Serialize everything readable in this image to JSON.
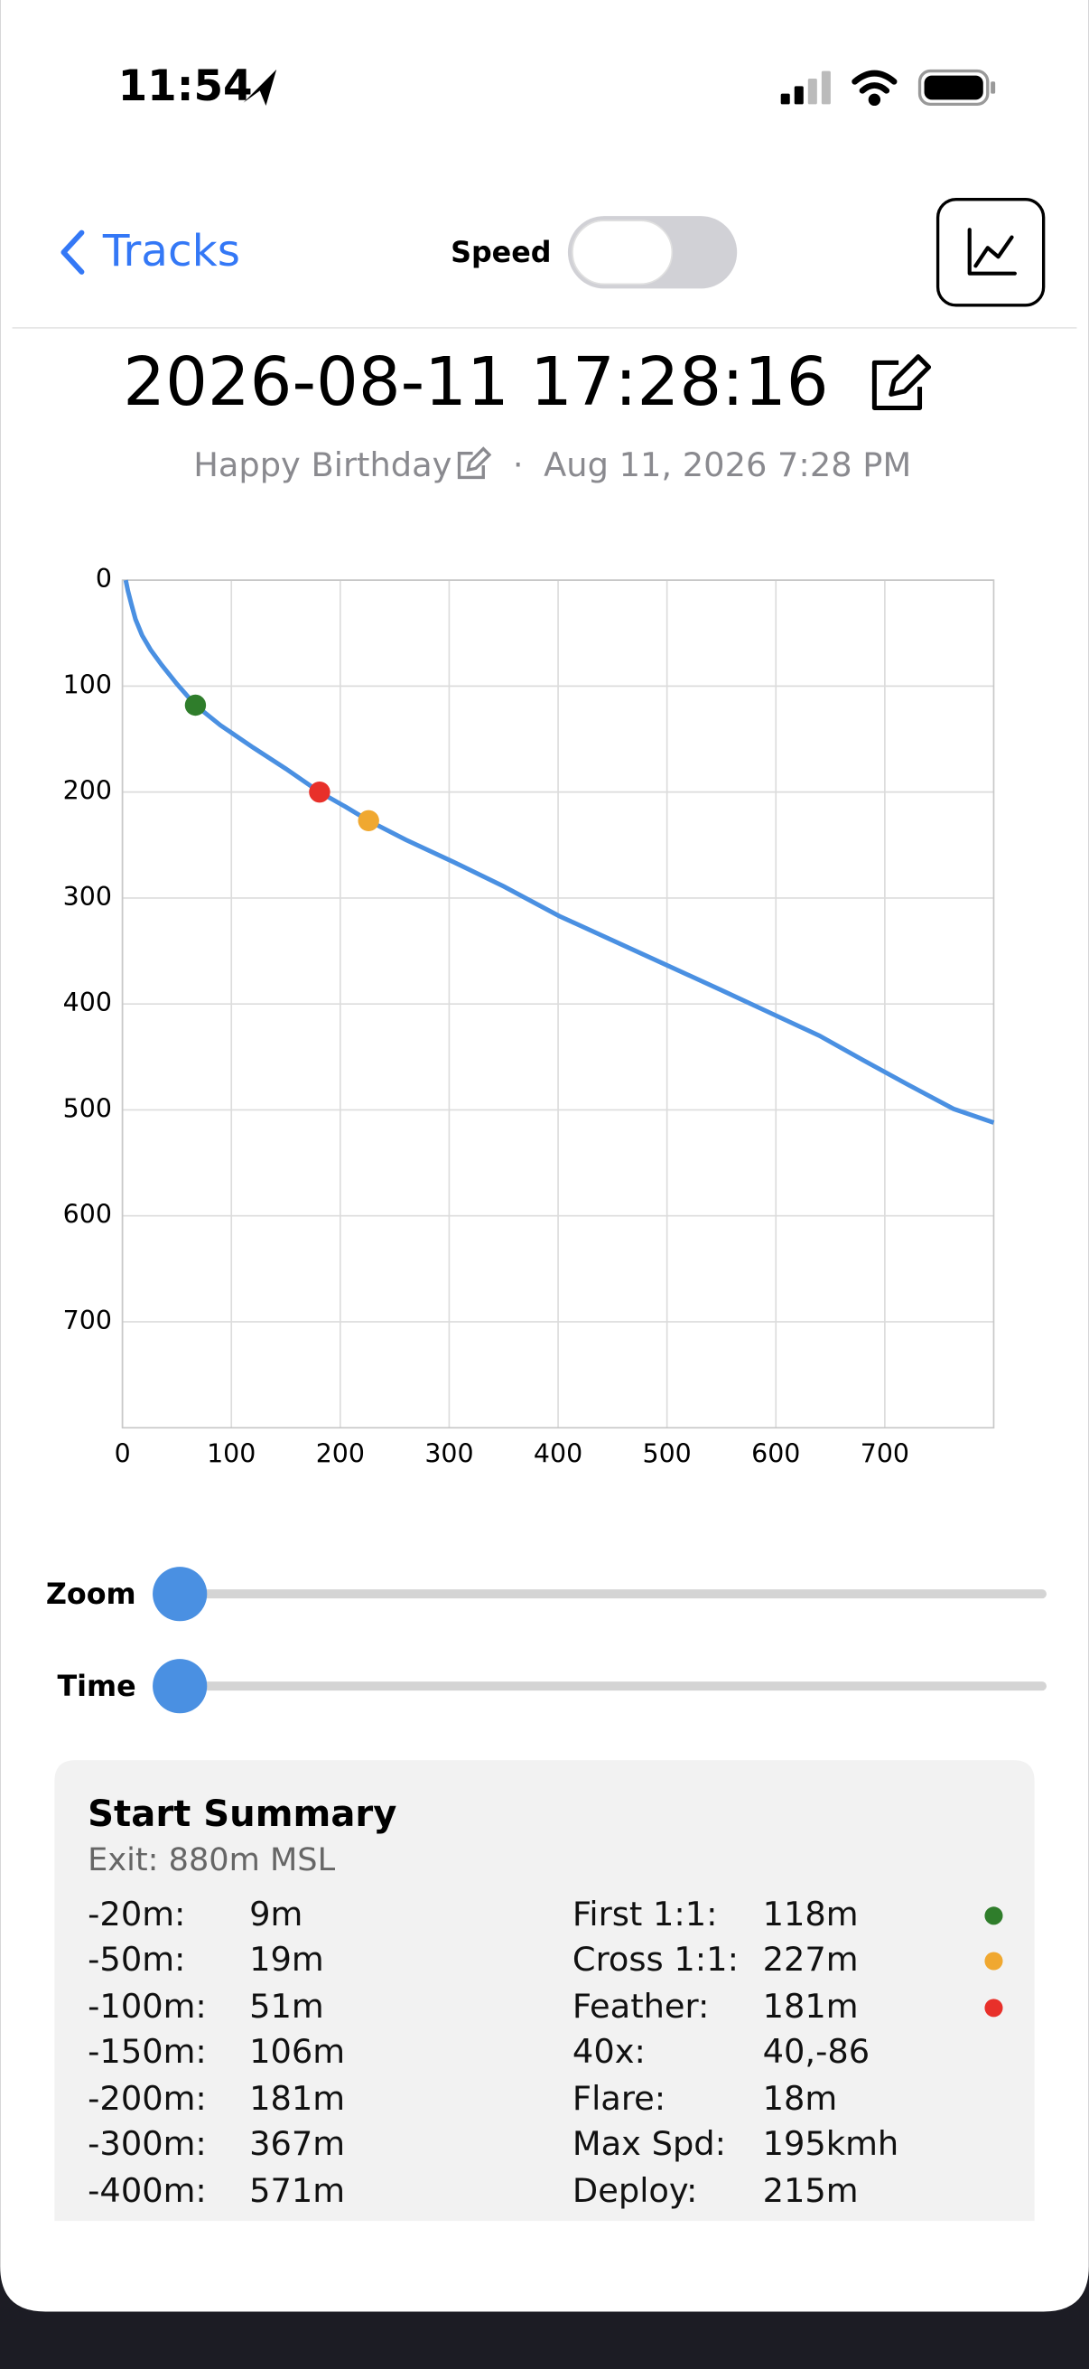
{
  "status_bar": {
    "time": "11:54"
  },
  "nav": {
    "back": "Tracks",
    "toggle_label": "Speed"
  },
  "header": {
    "title": "2026-08-11 17:28:16",
    "name": "Happy Birthday",
    "separator": "·",
    "date": "Aug 11, 2026 7:28 PM"
  },
  "chart_data": {
    "type": "line",
    "grid": true,
    "y_inverted": true,
    "xlim": [
      0,
      800
    ],
    "xticks": [
      0,
      100,
      200,
      300,
      400,
      500,
      600,
      700
    ],
    "ylim": [
      0,
      800
    ],
    "yticks": [
      0,
      100,
      200,
      300,
      400,
      500,
      600,
      700
    ],
    "series": [
      {
        "color": "#4a90e2",
        "x": [
          3,
          5,
          8,
          12,
          18,
          26,
          36,
          50,
          67,
          90,
          120,
          150,
          181,
          205,
          226,
          260,
          304,
          350,
          401,
          450,
          499,
          550,
          596,
          640,
          680,
          721,
          763,
          800
        ],
        "values": [
          0,
          10,
          22,
          37,
          52,
          66,
          80,
          98,
          118,
          137,
          158,
          178,
          200,
          214,
          227,
          245,
          266,
          289,
          317,
          340,
          363,
          387,
          409,
          430,
          453,
          476,
          499,
          512
        ]
      }
    ],
    "markers": [
      {
        "x": 67,
        "y": 118,
        "color": "#2f7d2b"
      },
      {
        "x": 181,
        "y": 200,
        "color": "#e8302a"
      },
      {
        "x": 226,
        "y": 227,
        "color": "#f0a830"
      }
    ]
  },
  "sliders": {
    "zoom": "Zoom",
    "time": "Time"
  },
  "summary": {
    "title": "Start Summary",
    "subtitle": "Exit: 880m MSL",
    "left_rows": [
      [
        "-20m:",
        "9m"
      ],
      [
        "-50m:",
        "19m"
      ],
      [
        "-100m:",
        "51m"
      ],
      [
        "-150m:",
        "106m"
      ],
      [
        "-200m:",
        "181m"
      ],
      [
        "-300m:",
        "367m"
      ],
      [
        "-400m:",
        "571m"
      ]
    ],
    "right_rows": [
      [
        "First 1:1:",
        "118m"
      ],
      [
        "Cross 1:1:",
        "227m"
      ],
      [
        "Feather:",
        "181m"
      ],
      [
        "40x:",
        "40,-86"
      ],
      [
        "Flare:",
        "18m"
      ],
      [
        "Max Spd:",
        "195kmh"
      ],
      [
        "Deploy:",
        "215m"
      ]
    ]
  }
}
